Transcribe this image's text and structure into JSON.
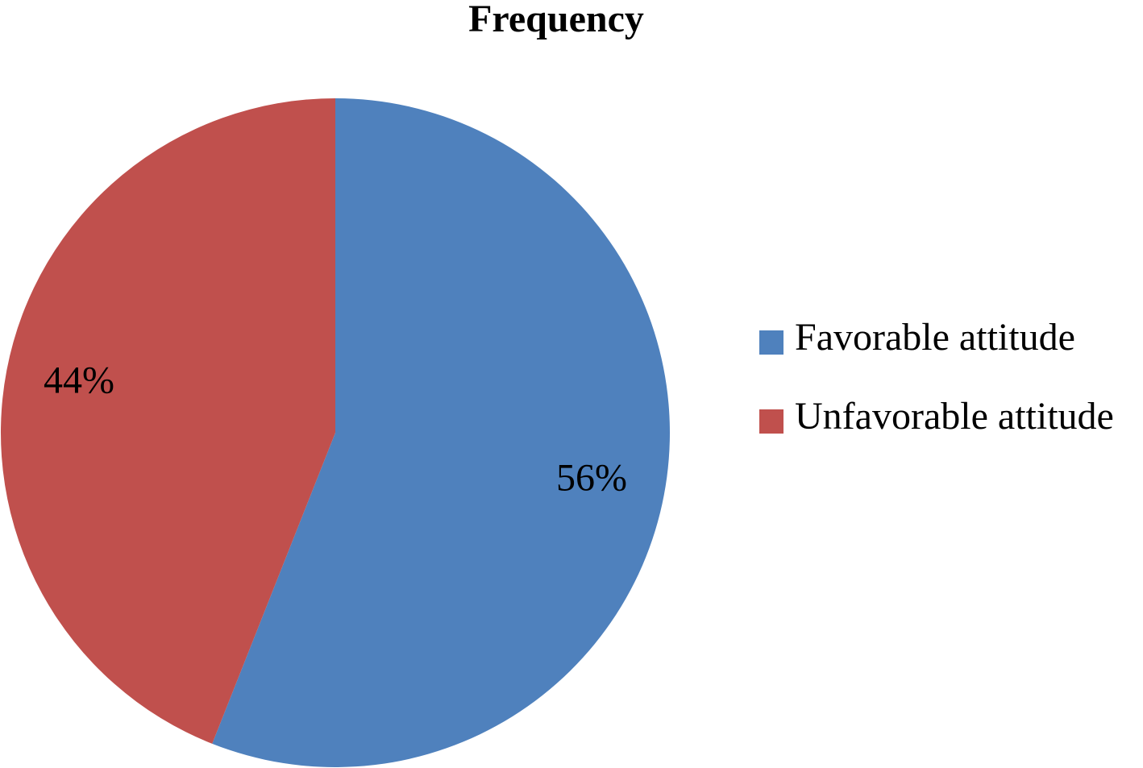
{
  "chart_data": {
    "type": "pie",
    "title": "Frequency",
    "categories": [
      "Favorable attitude",
      "Unfavorable attitude"
    ],
    "values": [
      56,
      44
    ],
    "value_labels": [
      "56%",
      "44%"
    ],
    "colors": [
      "#4f81bd",
      "#c0504d"
    ],
    "legend": "right"
  }
}
